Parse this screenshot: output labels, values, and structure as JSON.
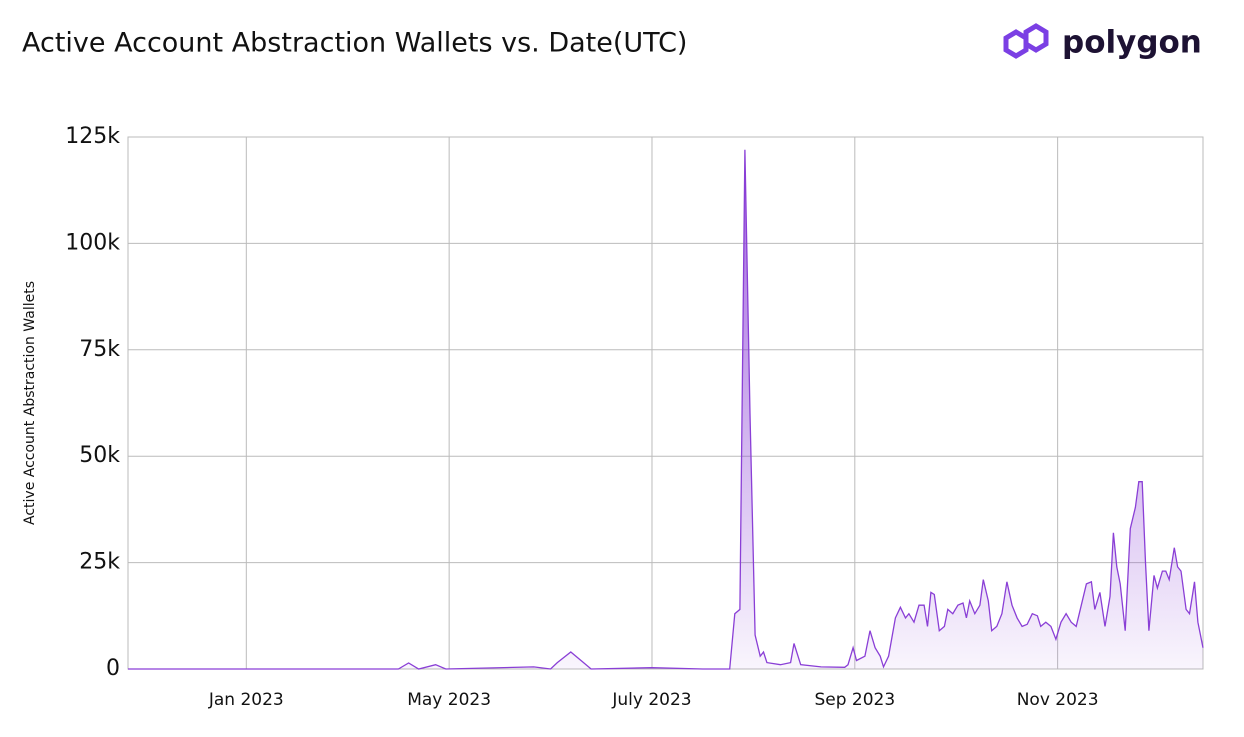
{
  "chart_data": {
    "type": "area",
    "title": "Active Account Abstraction Wallets vs. Date(UTC)",
    "brand": "polygon",
    "y_label": "Active Account Abstraction Wallets",
    "color": "#8a3fd6",
    "grid": true,
    "xlim": [
      0,
      318
    ],
    "xticks": [
      {
        "value": 35,
        "label": "Jan 2023"
      },
      {
        "value": 95,
        "label": "May 2023"
      },
      {
        "value": 155,
        "label": "July 2023"
      },
      {
        "value": 215,
        "label": "Sep 2023"
      },
      {
        "value": 275,
        "label": "Nov 2023"
      }
    ],
    "ylim": [
      0,
      125000
    ],
    "yticks": [
      {
        "value": 0,
        "label": "0"
      },
      {
        "value": 25000,
        "label": "25k"
      },
      {
        "value": 50000,
        "label": "50k"
      },
      {
        "value": 75000,
        "label": "75k"
      },
      {
        "value": 100000,
        "label": "100k"
      },
      {
        "value": 125000,
        "label": "125k"
      }
    ],
    "x": [
      0,
      80,
      83,
      86,
      91,
      94,
      120,
      125,
      127,
      131,
      134,
      137,
      155,
      170,
      178,
      179.5,
      181,
      182.5,
      184,
      185.5,
      187,
      188,
      189,
      193,
      196,
      197,
      199,
      205,
      212,
      213,
      214.5,
      215.5,
      218,
      219.5,
      221,
      222.5,
      223.5,
      225,
      227,
      228.5,
      230,
      231,
      232.5,
      234,
      235.5,
      236.5,
      237.5,
      238.5,
      240,
      241.5,
      242.5,
      244,
      245.5,
      247,
      248,
      249,
      250.5,
      252,
      253,
      254.5,
      255.5,
      257,
      258.5,
      260,
      261.5,
      263,
      264.5,
      266,
      267.5,
      269,
      270,
      271.5,
      273,
      274.5,
      276,
      277.5,
      279,
      280.5,
      282,
      283.5,
      285,
      286,
      287.5,
      289,
      290.5,
      291.5,
      292.5,
      293.5,
      295,
      296.5,
      298,
      299,
      300,
      301,
      302,
      303.5,
      304.5,
      306,
      307,
      308,
      309.5,
      310.5,
      311.5,
      313,
      314,
      315,
      315.5,
      316.5,
      317.5,
      318
    ],
    "values": [
      0,
      0,
      1400,
      0,
      1000,
      0,
      500,
      0,
      1500,
      4000,
      2000,
      0,
      300,
      0,
      0,
      13000,
      14000,
      122000,
      60000,
      8000,
      3000,
      4000,
      1500,
      1000,
      1500,
      6000,
      1000,
      500,
      400,
      1000,
      5000,
      2000,
      3000,
      9000,
      5000,
      3000,
      500,
      3000,
      12000,
      14500,
      12000,
      13000,
      11000,
      15000,
      15000,
      10000,
      18000,
      17500,
      9000,
      10000,
      14000,
      13000,
      15000,
      15500,
      12000,
      16000,
      13000,
      15000,
      21000,
      16000,
      9000,
      10000,
      13000,
      20500,
      15000,
      12000,
      10000,
      10500,
      13000,
      12500,
      10000,
      11000,
      10000,
      7000,
      11000,
      13000,
      11000,
      10000,
      15000,
      20000,
      20500,
      14000,
      18000,
      10000,
      17000,
      32000,
      24000,
      20000,
      9000,
      33000,
      38000,
      44000,
      44000,
      25000,
      9000,
      22000,
      19000,
      23000,
      23000,
      21000,
      28500,
      24000,
      23000,
      14000,
      13000,
      18000,
      20500,
      11000,
      7000,
      5000
    ]
  }
}
